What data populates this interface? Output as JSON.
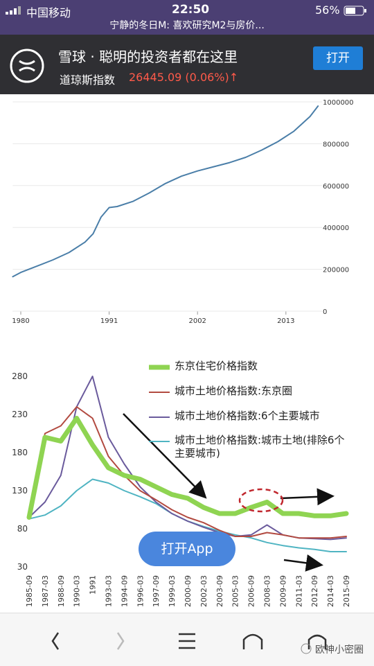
{
  "status_bar": {
    "carrier": "中国移动",
    "time": "22:50",
    "battery": "56%"
  },
  "page_title": "宁静的冬日M: 喜欢研究M2与房价...",
  "banner": {
    "app_name": "雪球 · 聪明的投资者都在这里",
    "index_name": "道琼斯指数",
    "index_value": "26445.09 (0.06%)↑",
    "open_button": "打开"
  },
  "chart_data": [
    {
      "type": "line",
      "color": "#4a7ea8",
      "x": [
        1979,
        1980,
        1982,
        1984,
        1986,
        1988,
        1989,
        1990,
        1991,
        1992,
        1994,
        1996,
        1998,
        2000,
        2002,
        2004,
        2006,
        2008,
        2010,
        2012,
        2014,
        2016,
        2017
      ],
      "values": [
        165000,
        185000,
        215000,
        245000,
        280000,
        330000,
        370000,
        450000,
        495000,
        500000,
        525000,
        565000,
        610000,
        645000,
        670000,
        690000,
        710000,
        735000,
        770000,
        810000,
        860000,
        930000,
        980000
      ],
      "xlim": [
        1979,
        2017.5
      ],
      "xticks": [
        1980,
        1991,
        2002,
        2013
      ],
      "ylim": [
        0,
        1000000
      ],
      "yticks": [
        0,
        200000,
        400000,
        600000,
        800000,
        1000000
      ],
      "grid": true
    },
    {
      "type": "line",
      "categories": [
        "1985-09",
        "1987-03",
        "1988-09",
        "1990-03",
        "1991",
        "1993-03",
        "1994-09",
        "1996-03",
        "1997-09",
        "1999-03",
        "2000-09",
        "2002-03",
        "2003-09",
        "2005-03",
        "2006-09",
        "2008-03",
        "2009-09",
        "2011-03",
        "2012-09",
        "2014-03",
        "2015-09"
      ],
      "series": [
        {
          "name": "东京住宅价格指数",
          "color": "#8fd452",
          "values": [
            95,
            200,
            195,
            225,
            190,
            160,
            150,
            145,
            135,
            125,
            120,
            108,
            100,
            100,
            108,
            115,
            100,
            100,
            97,
            97,
            100
          ]
        },
        {
          "name": "城市土地价格指数:东京圈",
          "color": "#b24a40",
          "values": [
            95,
            205,
            215,
            240,
            225,
            175,
            150,
            130,
            118,
            105,
            95,
            88,
            78,
            70,
            70,
            75,
            72,
            68,
            68,
            68,
            70
          ]
        },
        {
          "name": "城市土地价格指数:6个主要城市",
          "color": "#6a5a9c",
          "values": [
            95,
            115,
            150,
            240,
            280,
            200,
            165,
            135,
            115,
            100,
            90,
            82,
            75,
            70,
            72,
            85,
            72,
            68,
            67,
            66,
            68
          ]
        },
        {
          "name": "城市土地价格指数:城市土地(排除6个主要城市)",
          "color": "#4fb4c2",
          "values": [
            93,
            98,
            110,
            130,
            145,
            140,
            130,
            122,
            113,
            100,
            90,
            83,
            77,
            72,
            68,
            62,
            58,
            55,
            53,
            50,
            50
          ]
        }
      ],
      "ylim": [
        30,
        280
      ],
      "yticks": [
        30,
        80,
        130,
        180,
        230,
        280
      ]
    }
  ],
  "float_button": "打开App",
  "watermark": "欧神小密圈"
}
